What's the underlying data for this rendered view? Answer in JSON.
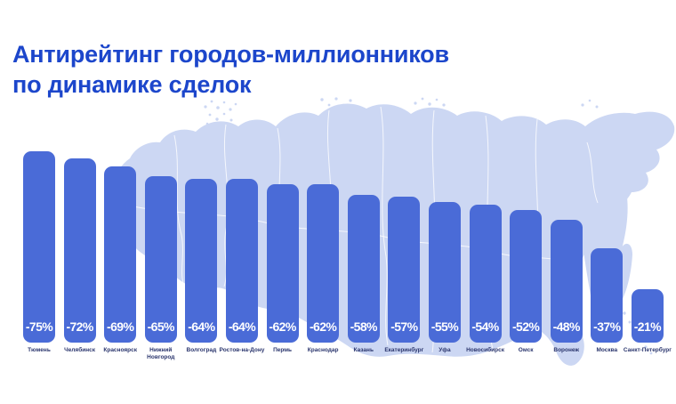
{
  "title": "Антирейтинг городов-миллионников\nпо динамике сделок",
  "chart_data": {
    "type": "bar",
    "title": "Антирейтинг городов-миллионников по динамике сделок",
    "categories": [
      "Тюмень",
      "Челябинск",
      "Красноярск",
      "Нижний\nНовгород",
      "Волгоград",
      "Ростов-на-Дону",
      "Пермь",
      "Краснодар",
      "Казань",
      "Екатеринбург",
      "Уфа",
      "Новосибирск",
      "Омск",
      "Воронеж",
      "Москва",
      "Санкт-Петербург"
    ],
    "values": [
      -75,
      -72,
      -69,
      -65,
      -64,
      -64,
      -62,
      -62,
      -58,
      -57,
      -55,
      -54,
      -52,
      -48,
      -37,
      -21
    ],
    "labels": [
      "-75%",
      "-72%",
      "-69%",
      "-65%",
      "-64%",
      "-64%",
      "-62%",
      "-62%",
      "-58%",
      "-57%",
      "-55%",
      "-54%",
      "-52%",
      "-48%",
      "-37%",
      "-21%"
    ],
    "unit": "%",
    "xlabel": "",
    "ylabel": "",
    "ylim": [
      -80,
      0
    ],
    "grid": false,
    "legend": null,
    "bar_order": "descending magnitude left to right",
    "background": "russia-map-silhouette"
  },
  "colors": {
    "background": "#ffffff",
    "bar": "#4a6bd7",
    "map_fill": "#ccd7f3",
    "title": "#1c46cb",
    "value_label": "#ffffff",
    "city_label": "#2a356d"
  }
}
